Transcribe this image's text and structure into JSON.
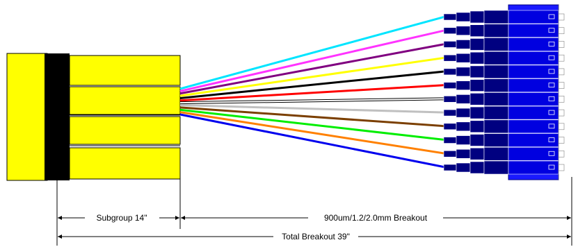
{
  "dimensions": {
    "subgroup_label": "Subgroup 14\"",
    "breakout_label": "900um/1.2/2.0mm Breakout",
    "total_label": "Total Breakout 39\""
  },
  "fiber_colors": [
    {
      "name": "aqua",
      "hex": "#00e5ff"
    },
    {
      "name": "rose",
      "hex": "#ff33ff"
    },
    {
      "name": "violet",
      "hex": "#800080"
    },
    {
      "name": "yellow",
      "hex": "#ffff00"
    },
    {
      "name": "black",
      "hex": "#000000"
    },
    {
      "name": "red",
      "hex": "#ff0000"
    },
    {
      "name": "white",
      "hex": "#ffffff"
    },
    {
      "name": "slate",
      "hex": "#c0c0c0"
    },
    {
      "name": "brown",
      "hex": "#7b3f00"
    },
    {
      "name": "green",
      "hex": "#00ee00"
    },
    {
      "name": "orange",
      "hex": "#ff8000"
    },
    {
      "name": "blue",
      "hex": "#0000ee"
    }
  ],
  "colors": {
    "subunit_yellow": "#ffff00",
    "furcation_black": "#000000",
    "connector_dark_blue": "#000080",
    "connector_blue": "#0000e0",
    "adapter_blue": "#1a1aff"
  }
}
